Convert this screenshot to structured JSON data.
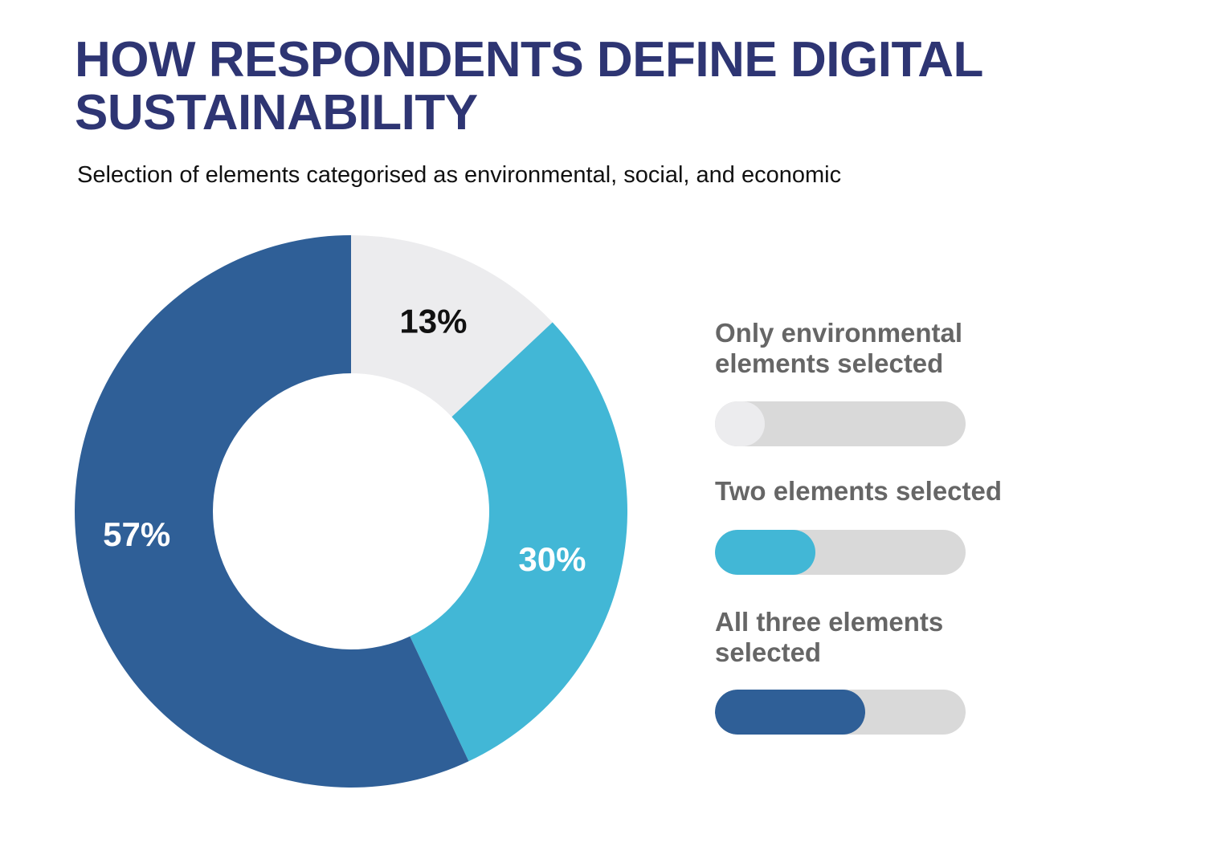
{
  "title": "HOW RESPONDENTS DEFINE DIGITAL SUSTAINABILITY",
  "subtitle": "Selection of elements categorised as environmental, social, and economic",
  "chart_data": {
    "type": "pie",
    "donut": true,
    "title": "HOW RESPONDENTS DEFINE DIGITAL SUSTAINABILITY",
    "subtitle": "Selection of elements categorised as environmental, social, and economic",
    "slices": [
      {
        "label": "Only environmental elements selected",
        "value": 13,
        "display": "13%",
        "color": "#ececee",
        "label_color": "#111111"
      },
      {
        "label": "Two elements selected",
        "value": 30,
        "display": "30%",
        "color": "#42b7d6",
        "label_color": "#ffffff"
      },
      {
        "label": "All three elements selected",
        "value": 57,
        "display": "57%",
        "color": "#2f5f97",
        "label_color": "#ffffff"
      }
    ],
    "legend": "right"
  },
  "legend": {
    "track_color": "#d9d9d9",
    "items": [
      {
        "label": "Only environmental elements selected",
        "fill_fraction": 0.2,
        "color": "#ececee"
      },
      {
        "label": "Two elements selected",
        "fill_fraction": 0.4,
        "color": "#42b7d6"
      },
      {
        "label": "All three elements selected",
        "fill_fraction": 0.6,
        "color": "#2f5f97"
      }
    ]
  },
  "colors": {
    "title": "#2e3573",
    "legend_text": "#666666"
  }
}
